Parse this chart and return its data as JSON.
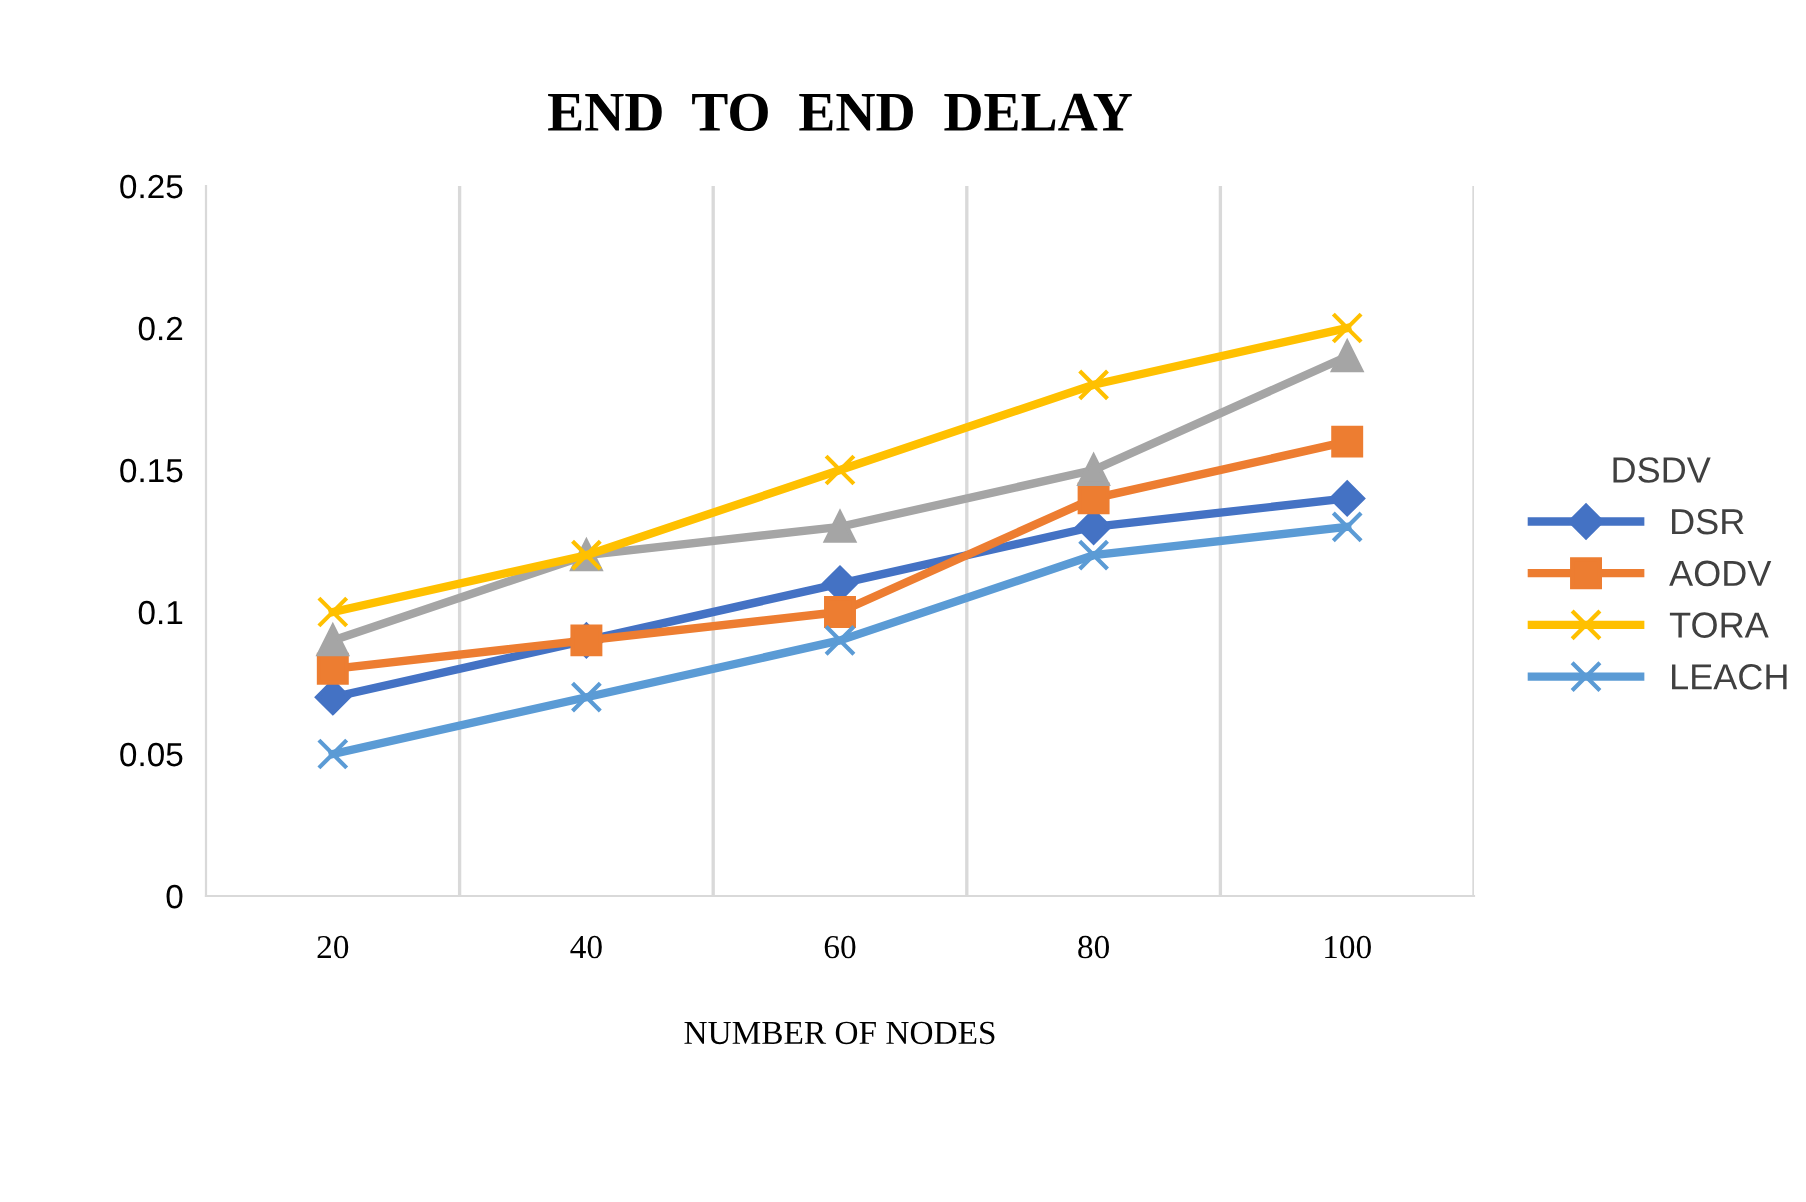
{
  "chart_data": {
    "type": "line",
    "title": "END  TO  END  DELAY",
    "xlabel": "NUMBER OF NODES",
    "legend_title": "DSDV",
    "categories": [
      "20",
      "40",
      "60",
      "80",
      "100"
    ],
    "series": [
      {
        "name": "DSR",
        "color": "#4472c4",
        "marker": "diamond",
        "values": [
          0.07,
          0.09,
          0.11,
          0.13,
          0.14
        ]
      },
      {
        "name": "AODV",
        "color": "#ed7d31",
        "marker": "square",
        "values": [
          0.08,
          0.09,
          0.1,
          0.14,
          0.16
        ]
      },
      {
        "color": "#a5a5a5",
        "marker": "triangle",
        "values": [
          0.09,
          0.12,
          0.13,
          0.15,
          0.19
        ]
      },
      {
        "name": "TORA",
        "color": "#ffc000",
        "marker": "cross",
        "values": [
          0.1,
          0.12,
          0.15,
          0.18,
          0.2
        ]
      },
      {
        "name": "LEACH",
        "color": "#5b9bd5",
        "marker": "cross",
        "values": [
          0.05,
          0.07,
          0.09,
          0.12,
          0.13
        ]
      }
    ],
    "ylim": [
      0,
      0.25
    ],
    "yticks": [
      0,
      0.05,
      0.1,
      0.15,
      0.2,
      0.25
    ],
    "grid": "x",
    "legend": "right"
  }
}
